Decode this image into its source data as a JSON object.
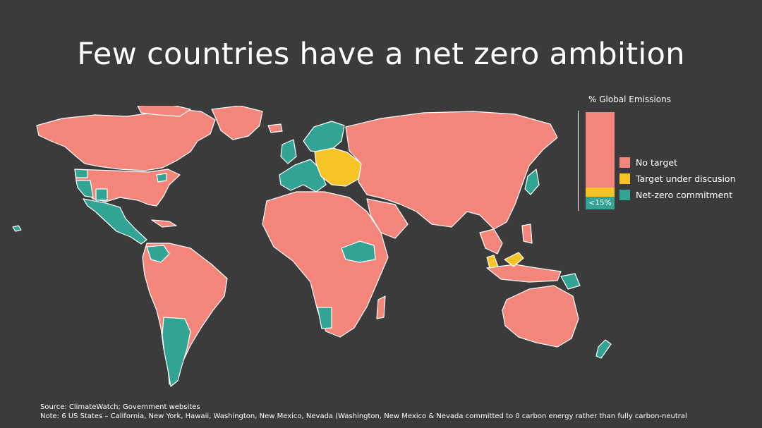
{
  "title": "Few countries have a net zero ambition",
  "legend": {
    "title": "% Global Emissions",
    "items": [
      {
        "label": "No target",
        "color": "#f4857a"
      },
      {
        "label": "Target under discusion",
        "color": "#f7c325"
      },
      {
        "label": "Net-zero commitment",
        "color": "#31a493"
      }
    ],
    "bar": {
      "net_zero_share_label": "<15%",
      "shares": {
        "no_target": 77.5,
        "under_discussion": 9.5,
        "net_zero": 13
      }
    }
  },
  "colors": {
    "background": "#3b3b3b",
    "no_target": "#f4857a",
    "under_discussion": "#f7c325",
    "net_zero": "#31a493",
    "border": "#ffffff"
  },
  "map": {
    "net_zero_regions": [
      "California",
      "New York",
      "Hawaii",
      "Washington",
      "New Mexico",
      "Nevada",
      "Mexico",
      "Chile",
      "Argentina",
      "United Kingdom",
      "Ireland",
      "Portugal",
      "Spain",
      "France",
      "Denmark",
      "Sweden",
      "Finland",
      "Norway",
      "Italy",
      "Namibia",
      "Ethiopia",
      "Sudan",
      "Japan",
      "Papua New Guinea",
      "New Zealand",
      "Panama",
      "Colombia",
      "Venezuela"
    ],
    "under_discussion_regions": [
      "Germany",
      "Poland",
      "Ukraine",
      "Czechia",
      "Austria",
      "Hungary",
      "Romania",
      "Bulgaria",
      "Malaysia"
    ]
  },
  "footer": {
    "source": "Source: ClimateWatch; Government websites",
    "note": "Note: 6 US States – California, New York, Hawaii, Washington, New Mexico, Nevada (Washington, New Mexico & Nevada committed to 0 carbon energy rather than fully carbon-neutral"
  }
}
